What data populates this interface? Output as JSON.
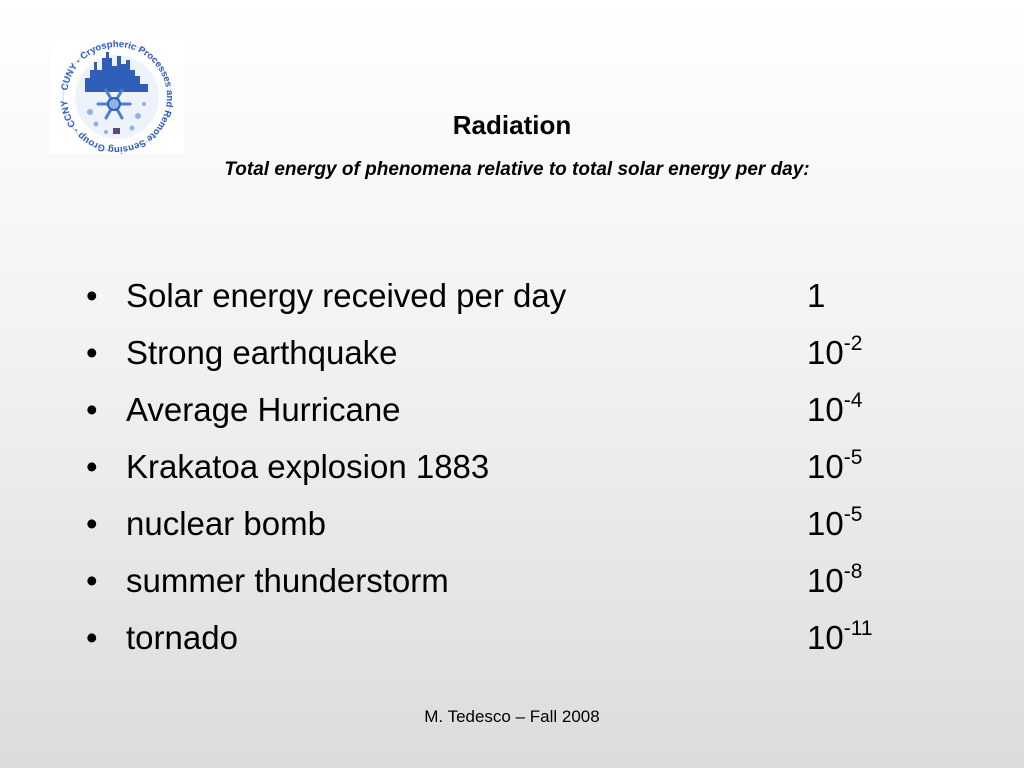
{
  "slide": {
    "title": "Radiation",
    "subtitle": "Total energy of phenomena relative to total solar energy per day:",
    "footer": "M. Tedesco – Fall 2008"
  },
  "logo": {
    "icon": "snowflake-city-logo-icon",
    "ring_text": "CUNY - Cryospheric Processes and Remote Sensing Group - CCNY -"
  },
  "bullets": [
    {
      "label": "Solar energy received per day",
      "base": "1",
      "exp": ""
    },
    {
      "label": "Strong earthquake",
      "base": "10",
      "exp": "-2"
    },
    {
      "label": "Average Hurricane",
      "base": "10",
      "exp": "-4"
    },
    {
      "label": "Krakatoa explosion 1883",
      "base": "10",
      "exp": "-5"
    },
    {
      "label": "nuclear bomb",
      "base": "10",
      "exp": "-5"
    },
    {
      "label": "summer thunderstorm",
      "base": "10",
      "exp": "-8"
    },
    {
      "label": "tornado",
      "base": "10",
      "exp": "-11"
    }
  ],
  "bullet_char": "•",
  "colors": {
    "logo_blue": "#2f5fb8",
    "logo_light": "#8fb3e6"
  }
}
